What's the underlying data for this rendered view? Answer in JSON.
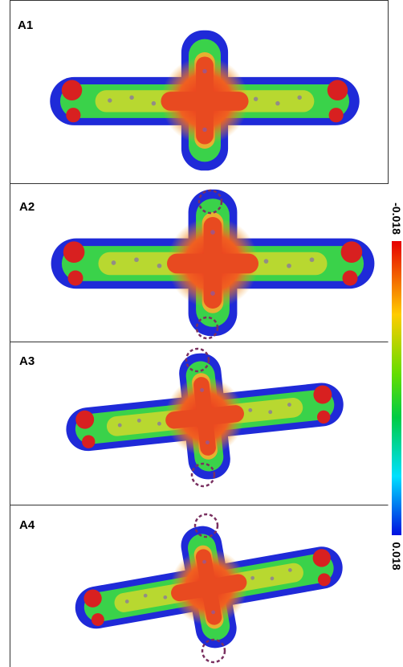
{
  "panels": [
    {
      "label": "A1"
    },
    {
      "label": "A2"
    },
    {
      "label": "A3"
    },
    {
      "label": "A4"
    }
  ],
  "colorbar": {
    "top_label": "-0.018",
    "bottom_label": "0.018"
  }
}
